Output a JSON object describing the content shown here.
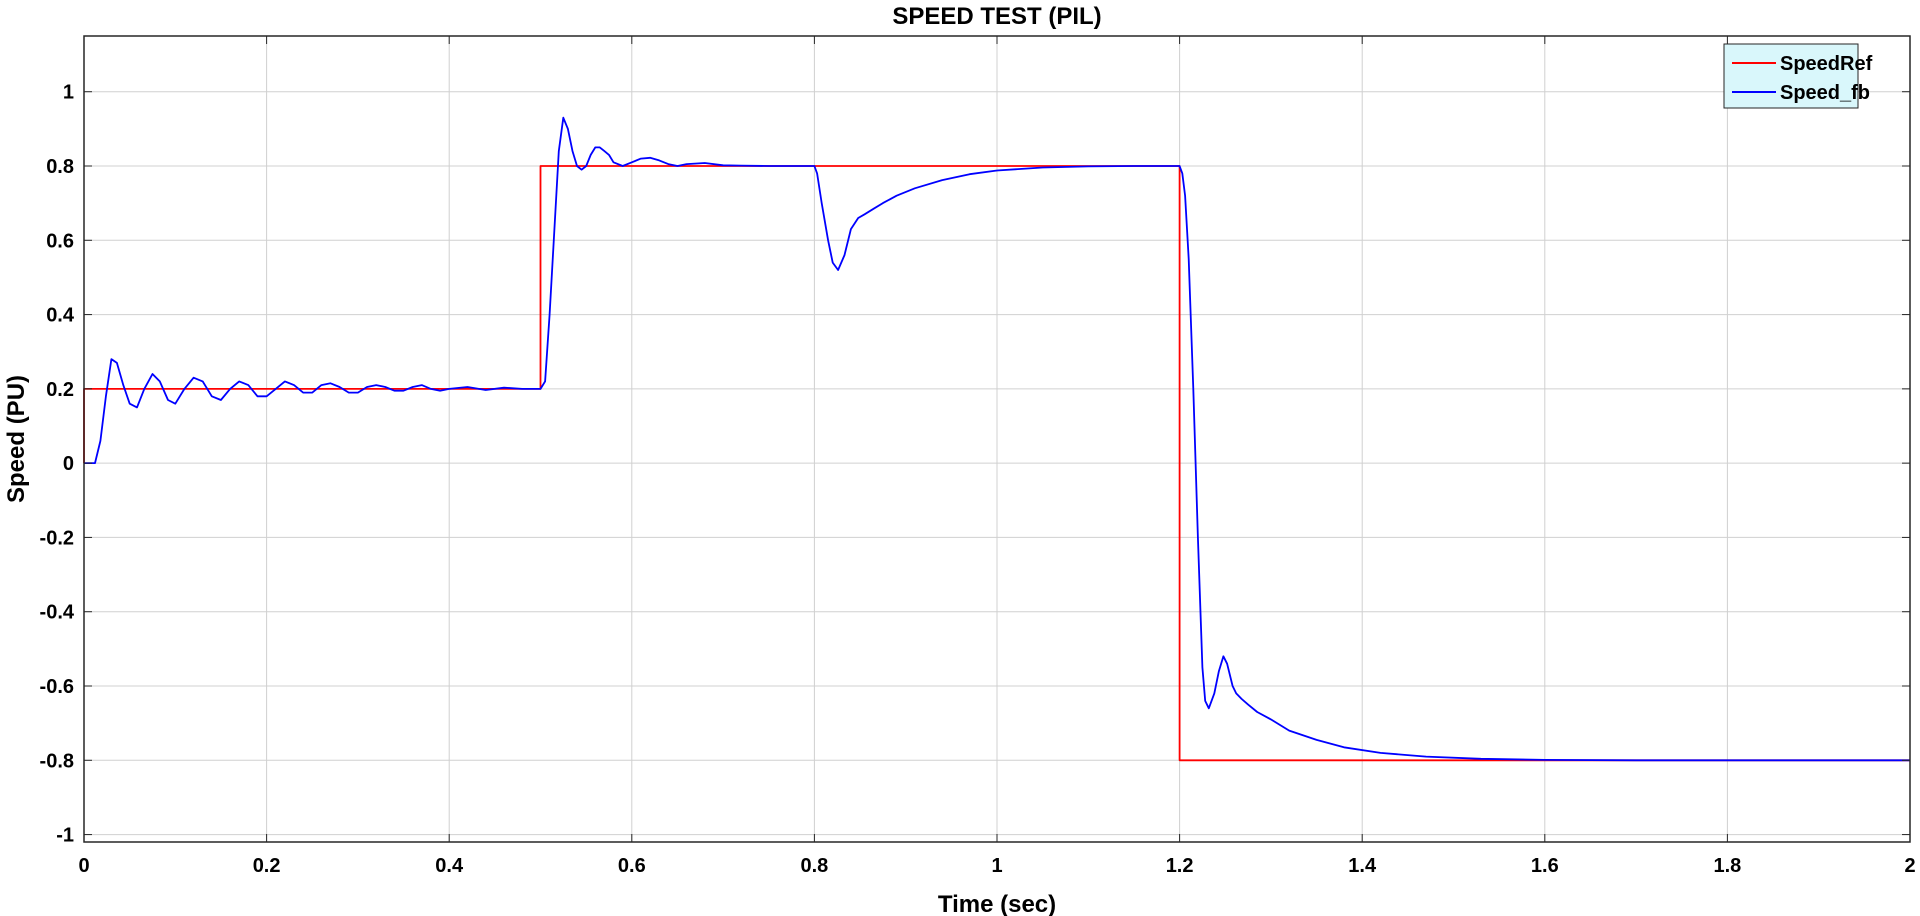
{
  "chart_data": {
    "type": "line",
    "title": "SPEED TEST (PIL)",
    "xlabel": "Time (sec)",
    "ylabel": "Speed (PU)",
    "xlim": [
      0,
      2
    ],
    "ylim": [
      -1.02,
      1.15
    ],
    "xticks": [
      0,
      0.2,
      0.4,
      0.6,
      0.8,
      1,
      1.2,
      1.4,
      1.6,
      1.8,
      2
    ],
    "xtick_labels": [
      "0",
      "0.2",
      "0.4",
      "0.6",
      "0.8",
      "1",
      "1.2",
      "1.4",
      "1.6",
      "1.8",
      "2"
    ],
    "yticks": [
      -1,
      -0.8,
      -0.6,
      -0.4,
      -0.2,
      0,
      0.2,
      0.4,
      0.6,
      0.8,
      1
    ],
    "ytick_labels": [
      "-1",
      "-0.8",
      "-0.6",
      "-0.4",
      "-0.2",
      "0",
      "0.2",
      "0.4",
      "0.6",
      "0.8",
      "1"
    ],
    "grid": true,
    "legend_position": "top-right",
    "series": [
      {
        "name": "SpeedRef",
        "color": "#ff0000",
        "x": [
          0,
          0,
          0.5,
          0.5,
          1.2,
          1.2,
          2
        ],
        "y": [
          0,
          0.2,
          0.2,
          0.8,
          0.8,
          -0.8,
          -0.8
        ]
      },
      {
        "name": "Speed_fb",
        "color": "#0000ff",
        "x": [
          0,
          0.012,
          0.018,
          0.024,
          0.03,
          0.036,
          0.043,
          0.05,
          0.058,
          0.066,
          0.075,
          0.083,
          0.092,
          0.1,
          0.11,
          0.12,
          0.13,
          0.14,
          0.15,
          0.16,
          0.17,
          0.18,
          0.19,
          0.2,
          0.21,
          0.22,
          0.23,
          0.24,
          0.25,
          0.26,
          0.27,
          0.28,
          0.29,
          0.3,
          0.31,
          0.32,
          0.33,
          0.34,
          0.35,
          0.36,
          0.37,
          0.38,
          0.39,
          0.4,
          0.42,
          0.44,
          0.46,
          0.48,
          0.5,
          0.505,
          0.51,
          0.515,
          0.52,
          0.525,
          0.53,
          0.535,
          0.54,
          0.545,
          0.55,
          0.555,
          0.56,
          0.565,
          0.57,
          0.575,
          0.58,
          0.59,
          0.6,
          0.61,
          0.62,
          0.63,
          0.64,
          0.65,
          0.66,
          0.68,
          0.7,
          0.72,
          0.75,
          0.8,
          0.803,
          0.808,
          0.815,
          0.82,
          0.826,
          0.833,
          0.84,
          0.848,
          0.855,
          0.865,
          0.875,
          0.89,
          0.91,
          0.94,
          0.97,
          1.0,
          1.05,
          1.1,
          1.15,
          1.2,
          1.203,
          1.206,
          1.21,
          1.215,
          1.22,
          1.225,
          1.228,
          1.232,
          1.238,
          1.243,
          1.248,
          1.252,
          1.258,
          1.262,
          1.268,
          1.275,
          1.285,
          1.3,
          1.32,
          1.35,
          1.38,
          1.42,
          1.47,
          1.53,
          1.6,
          1.7,
          1.8,
          1.9,
          2.0
        ],
        "y": [
          0,
          0,
          0.06,
          0.18,
          0.28,
          0.27,
          0.21,
          0.16,
          0.15,
          0.2,
          0.24,
          0.22,
          0.17,
          0.16,
          0.2,
          0.23,
          0.22,
          0.18,
          0.17,
          0.2,
          0.22,
          0.21,
          0.18,
          0.18,
          0.2,
          0.22,
          0.21,
          0.19,
          0.19,
          0.21,
          0.215,
          0.205,
          0.19,
          0.19,
          0.205,
          0.21,
          0.205,
          0.195,
          0.195,
          0.205,
          0.21,
          0.2,
          0.195,
          0.2,
          0.205,
          0.197,
          0.203,
          0.2,
          0.2,
          0.22,
          0.4,
          0.62,
          0.84,
          0.93,
          0.9,
          0.84,
          0.8,
          0.79,
          0.8,
          0.83,
          0.85,
          0.85,
          0.84,
          0.83,
          0.81,
          0.8,
          0.81,
          0.82,
          0.822,
          0.815,
          0.805,
          0.8,
          0.805,
          0.808,
          0.802,
          0.801,
          0.8,
          0.8,
          0.78,
          0.7,
          0.6,
          0.54,
          0.52,
          0.56,
          0.63,
          0.66,
          0.67,
          0.685,
          0.7,
          0.72,
          0.74,
          0.762,
          0.778,
          0.788,
          0.796,
          0.799,
          0.8,
          0.8,
          0.78,
          0.72,
          0.55,
          0.2,
          -0.2,
          -0.55,
          -0.64,
          -0.66,
          -0.62,
          -0.56,
          -0.52,
          -0.54,
          -0.6,
          -0.62,
          -0.635,
          -0.65,
          -0.67,
          -0.69,
          -0.72,
          -0.745,
          -0.765,
          -0.78,
          -0.79,
          -0.796,
          -0.799,
          -0.8,
          -0.8,
          -0.8,
          -0.8
        ]
      }
    ]
  }
}
